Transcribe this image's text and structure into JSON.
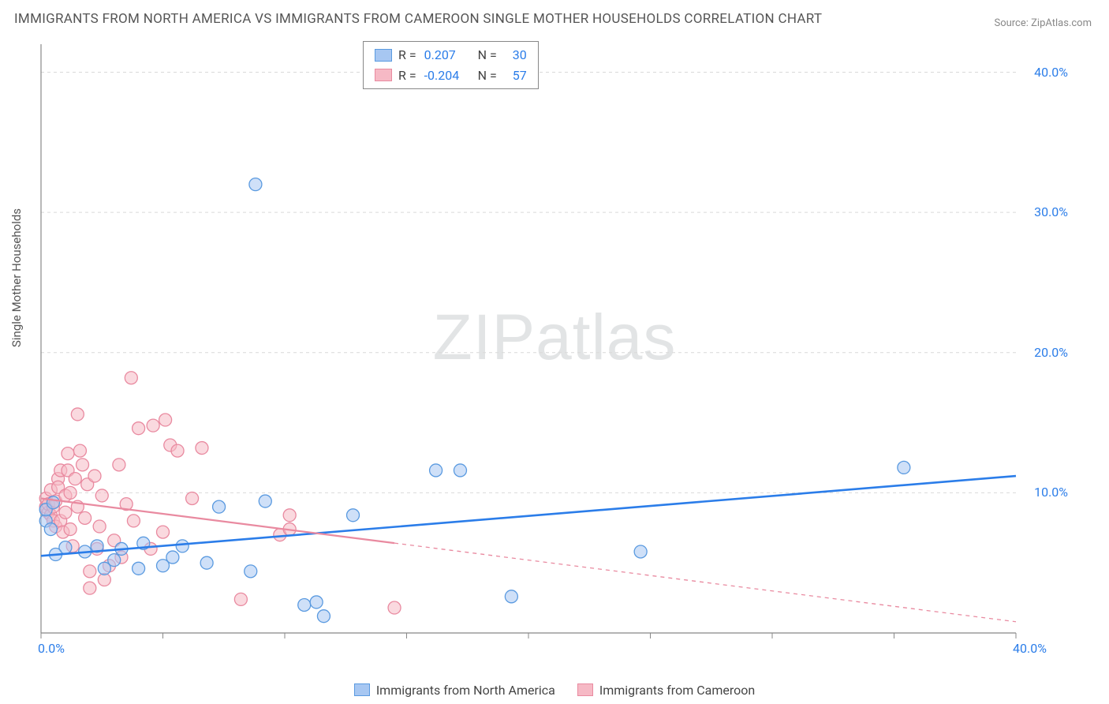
{
  "title": "IMMIGRANTS FROM NORTH AMERICA VS IMMIGRANTS FROM CAMEROON SINGLE MOTHER HOUSEHOLDS CORRELATION CHART",
  "source": "Source: ZipAtlas.com",
  "ylabel": "Single Mother Households",
  "watermark_a": "ZIP",
  "watermark_b": "atlas",
  "chart": {
    "type": "scatter",
    "xlim": [
      0,
      40
    ],
    "ylim": [
      0,
      42
    ],
    "x_ticks": [
      0,
      5,
      10,
      15,
      20,
      25,
      30,
      35,
      40
    ],
    "y_ticks": [
      10,
      20,
      30,
      40
    ],
    "x_tick_labels": [
      "0.0%",
      "",
      "",
      "",
      "",
      "",
      "",
      "",
      "40.0%"
    ],
    "y_tick_labels": [
      "10.0%",
      "20.0%",
      "30.0%",
      "40.0%"
    ],
    "grid_color": "#d9d9d9",
    "axis_color": "#888888",
    "background_color": "#ffffff",
    "series": [
      {
        "name": "Immigrants from North America",
        "color_fill": "#a7c7f2",
        "color_stroke": "#5a9ae0",
        "fill_opacity": 0.55,
        "marker_radius": 8,
        "trend": {
          "x1": 0,
          "y1": 5.5,
          "x2": 40,
          "y2": 11.2,
          "color": "#2b7de9",
          "width": 2.6,
          "solid_until_x": 40
        },
        "r": "0.207",
        "n": "30",
        "points": [
          [
            0.2,
            8.0
          ],
          [
            0.2,
            8.8
          ],
          [
            0.5,
            9.3
          ],
          [
            0.4,
            7.4
          ],
          [
            1.0,
            6.1
          ],
          [
            0.6,
            5.6
          ],
          [
            1.8,
            5.8
          ],
          [
            2.3,
            6.2
          ],
          [
            2.6,
            4.6
          ],
          [
            3.0,
            5.2
          ],
          [
            3.3,
            6.0
          ],
          [
            4.0,
            4.6
          ],
          [
            4.2,
            6.4
          ],
          [
            5.0,
            4.8
          ],
          [
            5.4,
            5.4
          ],
          [
            5.8,
            6.2
          ],
          [
            6.8,
            5.0
          ],
          [
            7.3,
            9.0
          ],
          [
            8.6,
            4.4
          ],
          [
            8.8,
            32.0
          ],
          [
            9.2,
            9.4
          ],
          [
            10.8,
            2.0
          ],
          [
            11.3,
            2.2
          ],
          [
            11.6,
            1.2
          ],
          [
            12.8,
            8.4
          ],
          [
            16.2,
            11.6
          ],
          [
            17.2,
            11.6
          ],
          [
            19.3,
            2.6
          ],
          [
            24.6,
            5.8
          ],
          [
            35.4,
            11.8
          ]
        ]
      },
      {
        "name": "Immigrants from Cameroon",
        "color_fill": "#f6b9c5",
        "color_stroke": "#e98aa0",
        "fill_opacity": 0.55,
        "marker_radius": 8,
        "trend": {
          "x1": 0,
          "y1": 9.6,
          "x2": 40,
          "y2": 0.8,
          "color": "#e98aa0",
          "width": 2.2,
          "solid_until_x": 14.5
        },
        "r": "-0.204",
        "n": "57",
        "points": [
          [
            0.2,
            9.0
          ],
          [
            0.2,
            9.6
          ],
          [
            0.3,
            8.6
          ],
          [
            0.3,
            9.2
          ],
          [
            0.4,
            8.4
          ],
          [
            0.4,
            10.2
          ],
          [
            0.5,
            9.0
          ],
          [
            0.5,
            8.0
          ],
          [
            0.6,
            7.6
          ],
          [
            0.6,
            9.4
          ],
          [
            0.7,
            11.0
          ],
          [
            0.7,
            10.4
          ],
          [
            0.8,
            11.6
          ],
          [
            0.8,
            8.0
          ],
          [
            0.9,
            7.2
          ],
          [
            1.0,
            9.8
          ],
          [
            1.0,
            8.6
          ],
          [
            1.1,
            12.8
          ],
          [
            1.1,
            11.6
          ],
          [
            1.2,
            10.0
          ],
          [
            1.2,
            7.4
          ],
          [
            1.3,
            6.2
          ],
          [
            1.4,
            11.0
          ],
          [
            1.5,
            15.6
          ],
          [
            1.5,
            9.0
          ],
          [
            1.6,
            13.0
          ],
          [
            1.7,
            12.0
          ],
          [
            1.8,
            8.2
          ],
          [
            1.9,
            10.6
          ],
          [
            2.0,
            4.4
          ],
          [
            2.0,
            3.2
          ],
          [
            2.2,
            11.2
          ],
          [
            2.3,
            6.0
          ],
          [
            2.4,
            7.6
          ],
          [
            2.5,
            9.8
          ],
          [
            2.6,
            3.8
          ],
          [
            2.8,
            4.8
          ],
          [
            3.0,
            6.6
          ],
          [
            3.2,
            12.0
          ],
          [
            3.3,
            5.4
          ],
          [
            3.5,
            9.2
          ],
          [
            3.7,
            18.2
          ],
          [
            3.8,
            8.0
          ],
          [
            4.0,
            14.6
          ],
          [
            4.5,
            6.0
          ],
          [
            4.6,
            14.8
          ],
          [
            5.0,
            7.2
          ],
          [
            5.1,
            15.2
          ],
          [
            5.3,
            13.4
          ],
          [
            5.6,
            13.0
          ],
          [
            6.2,
            9.6
          ],
          [
            6.6,
            13.2
          ],
          [
            8.2,
            2.4
          ],
          [
            9.8,
            7.0
          ],
          [
            10.2,
            7.4
          ],
          [
            10.2,
            8.4
          ],
          [
            14.5,
            1.8
          ]
        ]
      }
    ],
    "legend_top": {
      "r_label": "R =",
      "n_label": "N ="
    },
    "legend_bottom": [
      {
        "label": "Immigrants from North America",
        "fill": "#a7c7f2",
        "stroke": "#5a9ae0"
      },
      {
        "label": "Immigrants from Cameroon",
        "fill": "#f6b9c5",
        "stroke": "#e98aa0"
      }
    ]
  }
}
